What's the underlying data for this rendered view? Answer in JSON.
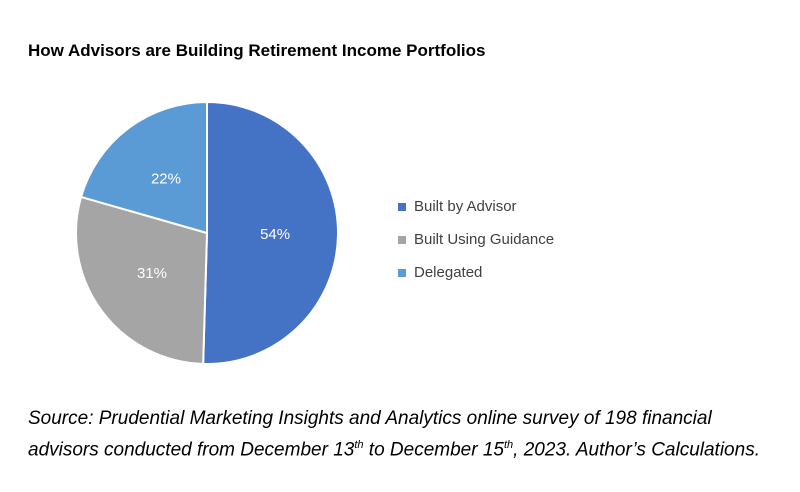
{
  "chart_data": {
    "type": "pie",
    "title": "How Advisors are Building Retirement Income Portfolios",
    "slices": [
      {
        "label": "Built by Advisor",
        "value": 54,
        "display": "54%",
        "color": "#4472C4"
      },
      {
        "label": "Built Using Guidance",
        "value": 31,
        "display": "31%",
        "color": "#A5A5A5"
      },
      {
        "label": "Delegated",
        "value": 22,
        "display": "22%",
        "color": "#5B9BD5"
      }
    ],
    "legend_position": "right",
    "start_angle": "top, clockwise"
  },
  "source": {
    "line1": "Source: Prudential Marketing Insights and Analytics online survey of 198 financial",
    "line2_a": "advisors conducted from December 13",
    "sup1": "th",
    "line2_b": " to December 15",
    "sup2": "th",
    "line2_c": ", 2023. Author’s Calculations."
  }
}
